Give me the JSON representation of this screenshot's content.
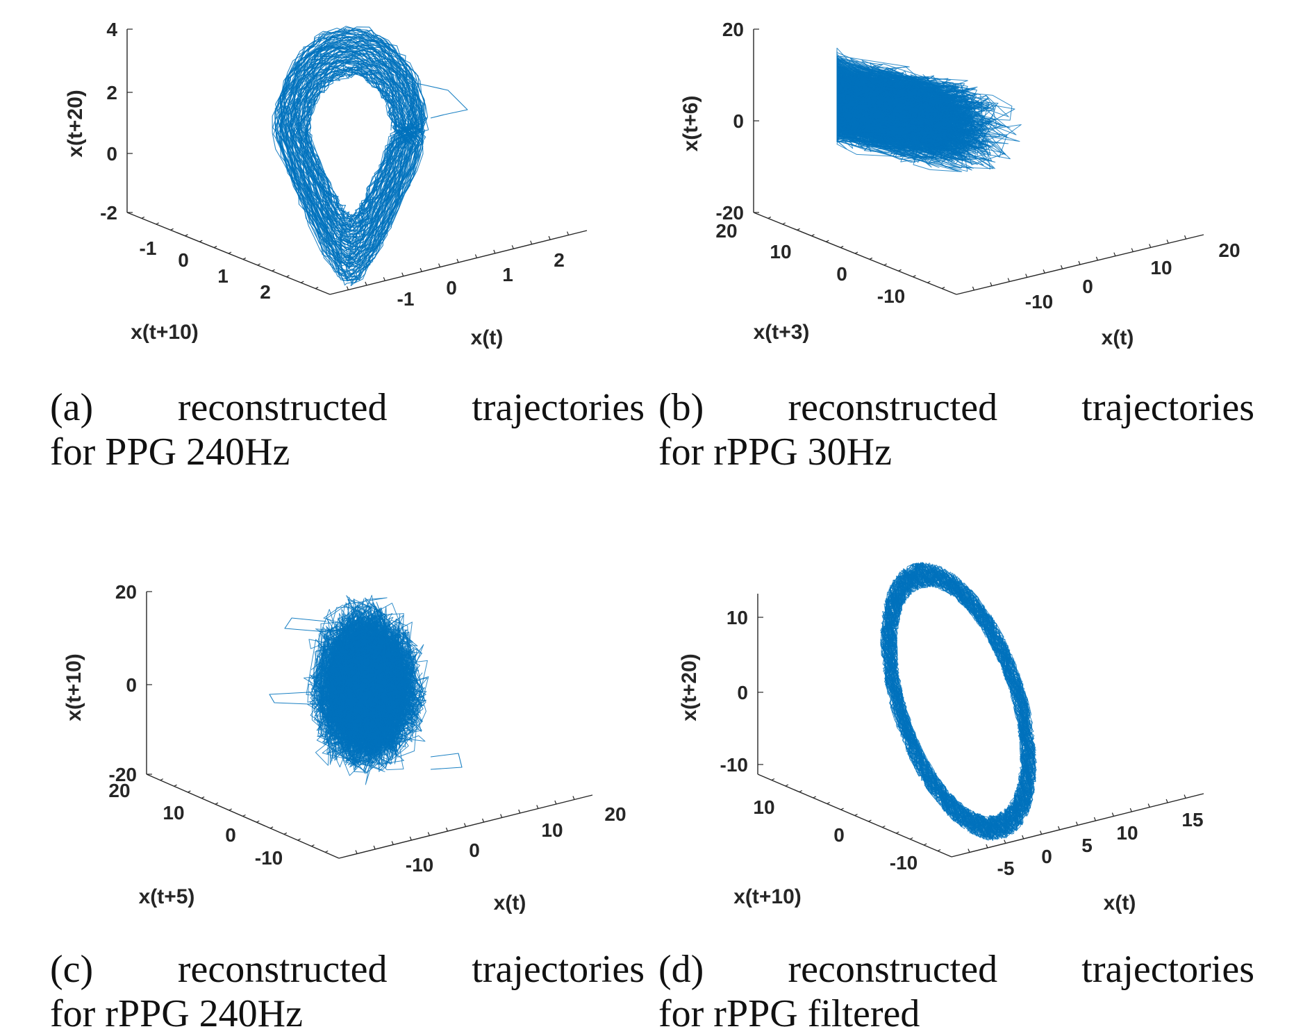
{
  "figure": {
    "panels": [
      {
        "id": "a",
        "caption_line1": "(a)  reconstructed  trajectories",
        "caption_line2": "for PPG 240Hz"
      },
      {
        "id": "b",
        "caption_line1": "(b)  reconstructed  trajectories",
        "caption_line2": "for rPPG 30Hz"
      },
      {
        "id": "c",
        "caption_line1": "(c)  reconstructed  trajectories",
        "caption_line2": "for rPPG 240Hz"
      },
      {
        "id": "d",
        "caption_line1": "(d)  reconstructed  trajectories",
        "caption_line2": "for rPPG filtered"
      }
    ]
  },
  "chart_data": [
    {
      "type": "line",
      "subtype": "3d-phase-space",
      "series_color": "#0072BD",
      "xlabel": "x(t)",
      "ylabel": "x(t+10)",
      "zlabel": "x(t+20)",
      "x_ticks": [
        "-1",
        "0",
        "1",
        "2"
      ],
      "y_ticks": [
        "-1",
        "0",
        "1",
        "2"
      ],
      "z_ticks": [
        "-2",
        "0",
        "2",
        "4"
      ],
      "xlim": [
        -1.6,
        2.6
      ],
      "ylim": [
        -1.6,
        2.6
      ],
      "zlim": [
        -2,
        4
      ],
      "shape": "teardrop loop",
      "grid": false
    },
    {
      "type": "line",
      "subtype": "3d-phase-space",
      "series_color": "#0072BD",
      "xlabel": "x(t)",
      "ylabel": "x(t+3)",
      "zlabel": "x(t+6)",
      "x_ticks": [
        "-10",
        "0",
        "10",
        "20"
      ],
      "y_ticks": [
        "-10",
        "0",
        "10",
        "20"
      ],
      "z_ticks": [
        "-20",
        "0",
        "20"
      ],
      "xlim": [
        -15,
        22
      ],
      "ylim": [
        -15,
        22
      ],
      "zlim": [
        -20,
        20
      ],
      "shape": "diffuse cloud",
      "grid": false
    },
    {
      "type": "line",
      "subtype": "3d-phase-space",
      "series_color": "#0072BD",
      "xlabel": "x(t)",
      "ylabel": "x(t+5)",
      "zlabel": "x(t+10)",
      "x_ticks": [
        "-10",
        "0",
        "10",
        "20"
      ],
      "y_ticks": [
        "-10",
        "0",
        "10",
        "20"
      ],
      "z_ticks": [
        "-20",
        "0",
        "20"
      ],
      "xlim": [
        -15,
        22
      ],
      "ylim": [
        -15,
        22
      ],
      "zlim": [
        -20,
        20
      ],
      "shape": "dense ellipsoidal cloud",
      "grid": false
    },
    {
      "type": "line",
      "subtype": "3d-phase-space",
      "series_color": "#0072BD",
      "xlabel": "x(t)",
      "ylabel": "x(t+10)",
      "zlabel": "x(t+20)",
      "x_ticks": [
        "-5",
        "0",
        "5",
        "10",
        "15"
      ],
      "y_ticks": [
        "-10",
        "0",
        "10"
      ],
      "z_ticks": [
        "-10",
        "0",
        "10"
      ],
      "xlim": [
        -8,
        16
      ],
      "ylim": [
        -12,
        12
      ],
      "zlim": [
        -10,
        13
      ],
      "shape": "tilted ring",
      "grid": false
    }
  ]
}
